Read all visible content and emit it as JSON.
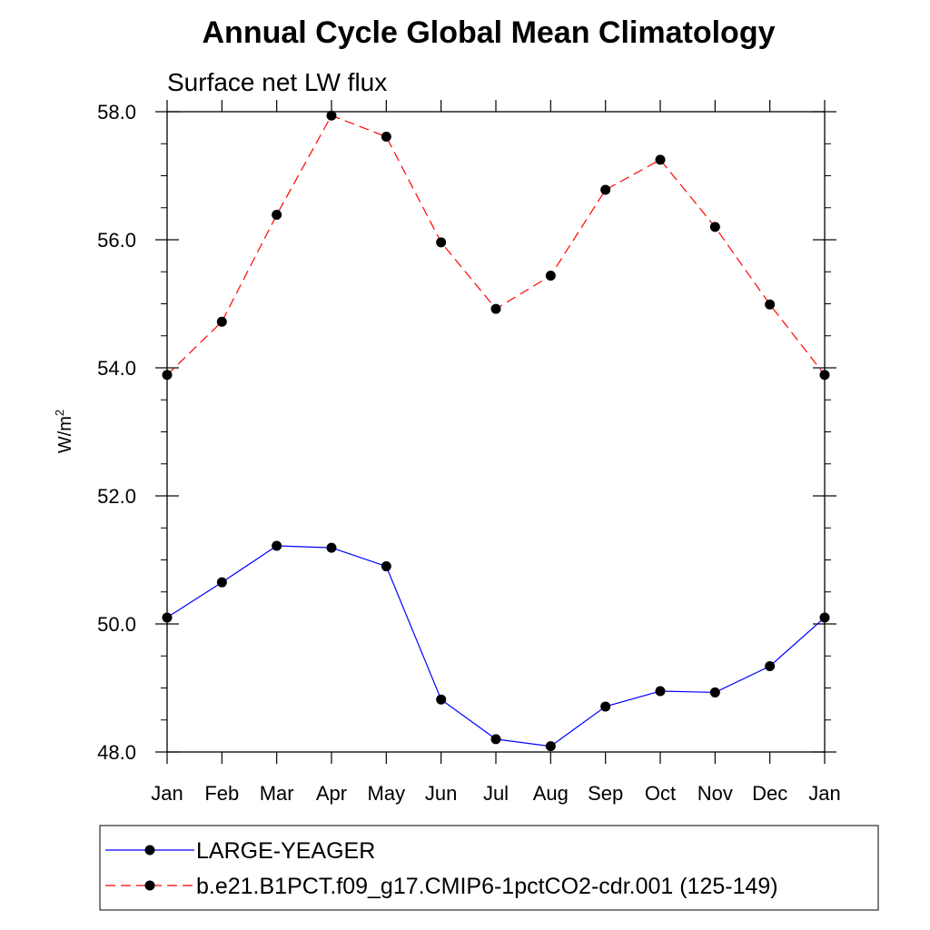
{
  "chart_data": {
    "type": "line",
    "title": "Annual Cycle Global Mean Climatology",
    "subtitle": "Surface net LW flux",
    "ylabel": "W/m",
    "ylabel_superscript": "2",
    "xlabel": "",
    "categories": [
      "Jan",
      "Feb",
      "Mar",
      "Apr",
      "May",
      "Jun",
      "Jul",
      "Aug",
      "Sep",
      "Oct",
      "Nov",
      "Dec",
      "Jan"
    ],
    "ylim": [
      48.0,
      58.0
    ],
    "yticks": [
      "48.0",
      "50.0",
      "52.0",
      "54.0",
      "56.0",
      "58.0"
    ],
    "grid": false,
    "legend_position": "bottom",
    "series": [
      {
        "name": "LARGE-YEAGER",
        "color": "#0000ff",
        "line_style": "solid",
        "marker": "filled-circle",
        "values": [
          50.1,
          50.65,
          51.22,
          51.19,
          50.9,
          48.82,
          48.2,
          48.09,
          48.71,
          48.95,
          48.93,
          49.34,
          50.1
        ]
      },
      {
        "name": "b.e21.B1PCT.f09_g17.CMIP6-1pctCO2-cdr.001 (125-149)",
        "color": "#ff0000",
        "line_style": "dashed",
        "marker": "filled-circle",
        "values": [
          53.89,
          54.72,
          56.39,
          57.94,
          57.61,
          55.96,
          54.92,
          55.44,
          56.78,
          57.25,
          56.2,
          54.99,
          53.89
        ]
      }
    ]
  }
}
